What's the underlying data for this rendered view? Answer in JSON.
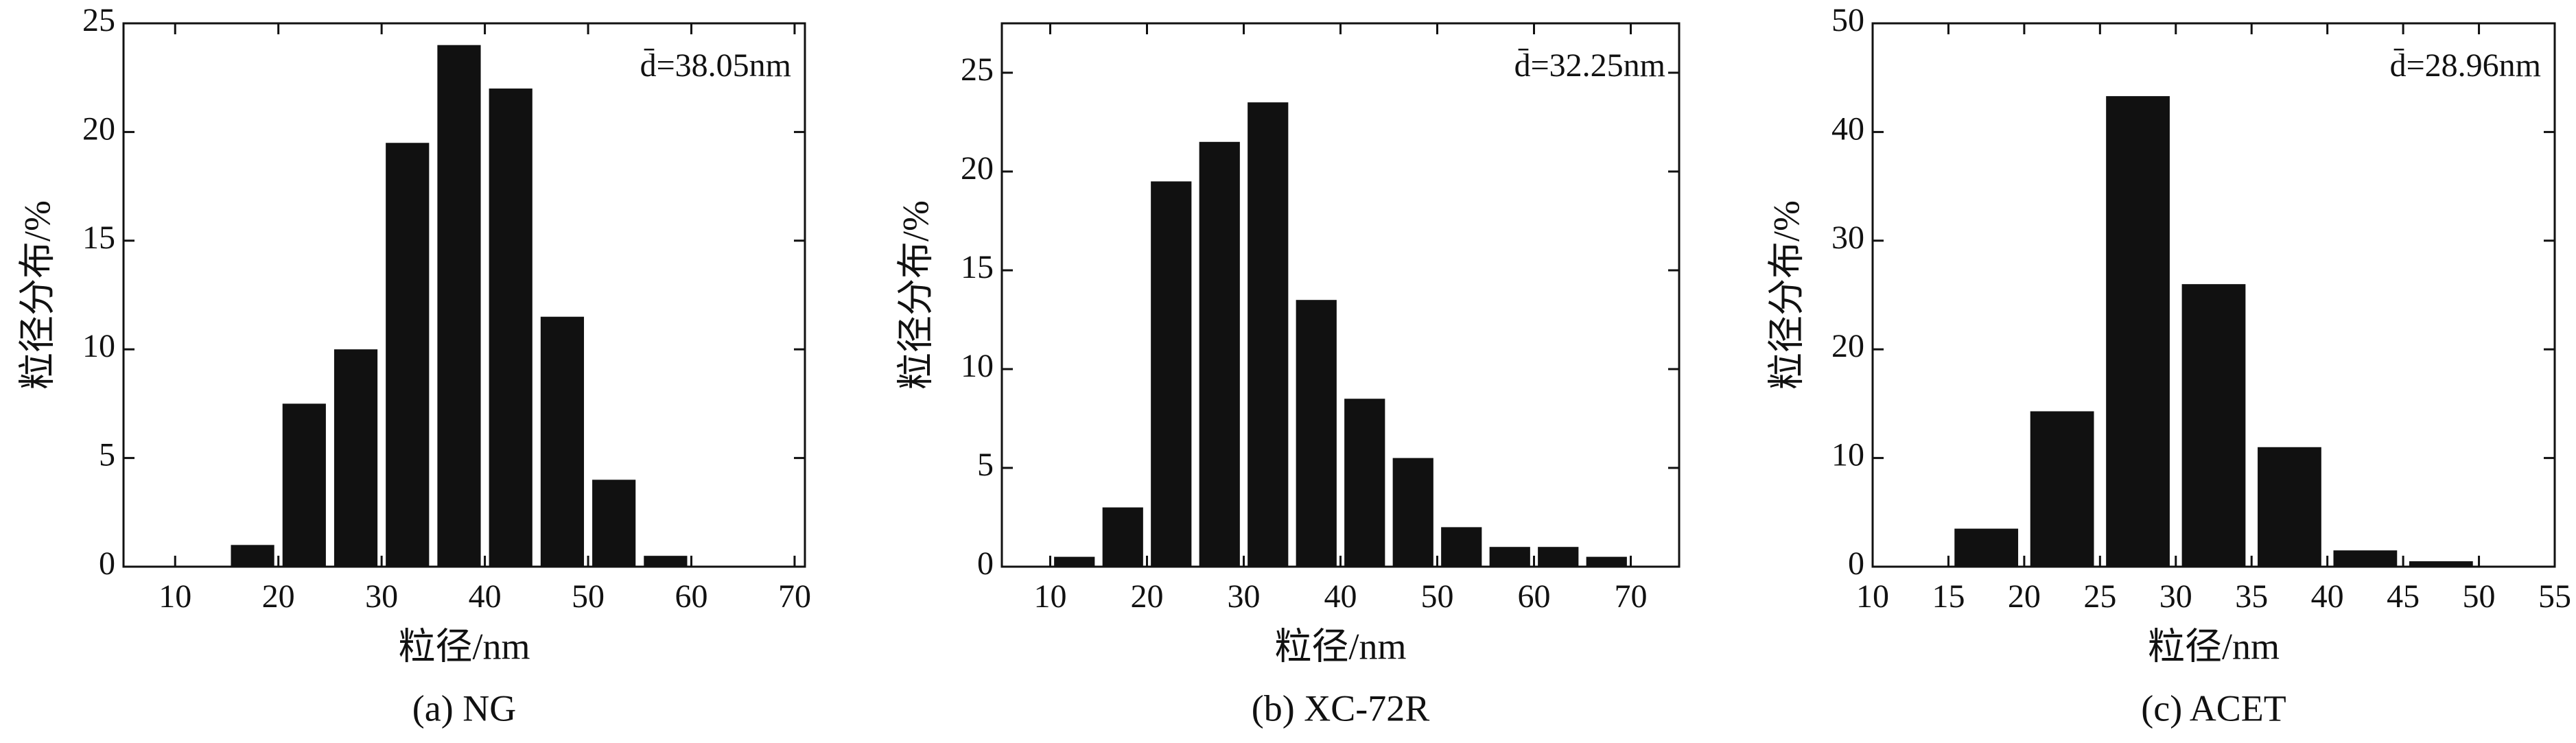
{
  "chart_data": [
    {
      "type": "histogram",
      "annotation": "d̄=38.05nm",
      "xlabel": "粒径/nm",
      "ylabel": "粒径分布/%",
      "caption": "(a) NG",
      "bins": [
        15,
        20,
        25,
        30,
        35,
        40,
        45,
        50,
        55,
        60
      ],
      "values": [
        1,
        7.5,
        10,
        19.5,
        24,
        22,
        11.5,
        4,
        0.5
      ],
      "color": "#111111",
      "xlim": [
        5,
        71
      ],
      "xticks": [
        10,
        20,
        30,
        40,
        50,
        60,
        70
      ],
      "ylim": [
        0,
        25
      ],
      "yticks": [
        0,
        5,
        10,
        15,
        20,
        25
      ]
    },
    {
      "type": "histogram",
      "annotation": "d̄=32.25nm",
      "xlabel": "粒径/nm",
      "ylabel": "粒径分布/%",
      "caption": "(b) XC-72R",
      "bins": [
        10,
        15,
        20,
        25,
        30,
        35,
        40,
        45,
        50,
        55,
        60,
        65,
        70
      ],
      "values": [
        0.5,
        3,
        19.5,
        21.5,
        23.5,
        13.5,
        8.5,
        5.5,
        2,
        1,
        1,
        0.5
      ],
      "color": "#111111",
      "xlim": [
        5,
        75
      ],
      "xticks": [
        10,
        20,
        30,
        40,
        50,
        60,
        70
      ],
      "ylim": [
        0,
        27.5
      ],
      "yticks": [
        0,
        5,
        10,
        15,
        20,
        25
      ]
    },
    {
      "type": "histogram",
      "annotation": "d̄=28.96nm",
      "xlabel": "粒径/nm",
      "ylabel": "粒径分布/%",
      "caption": "(c) ACET",
      "bins": [
        15,
        20,
        25,
        30,
        35,
        40,
        45,
        50
      ],
      "values": [
        3.5,
        14.3,
        43.3,
        26,
        11,
        1.5,
        0.5
      ],
      "color": "#111111",
      "xlim": [
        10,
        55
      ],
      "xticks": [
        10,
        15,
        20,
        25,
        30,
        35,
        40,
        45,
        50,
        55
      ],
      "ylim": [
        0,
        50
      ],
      "yticks": [
        0,
        10,
        20,
        30,
        40,
        50
      ]
    }
  ]
}
